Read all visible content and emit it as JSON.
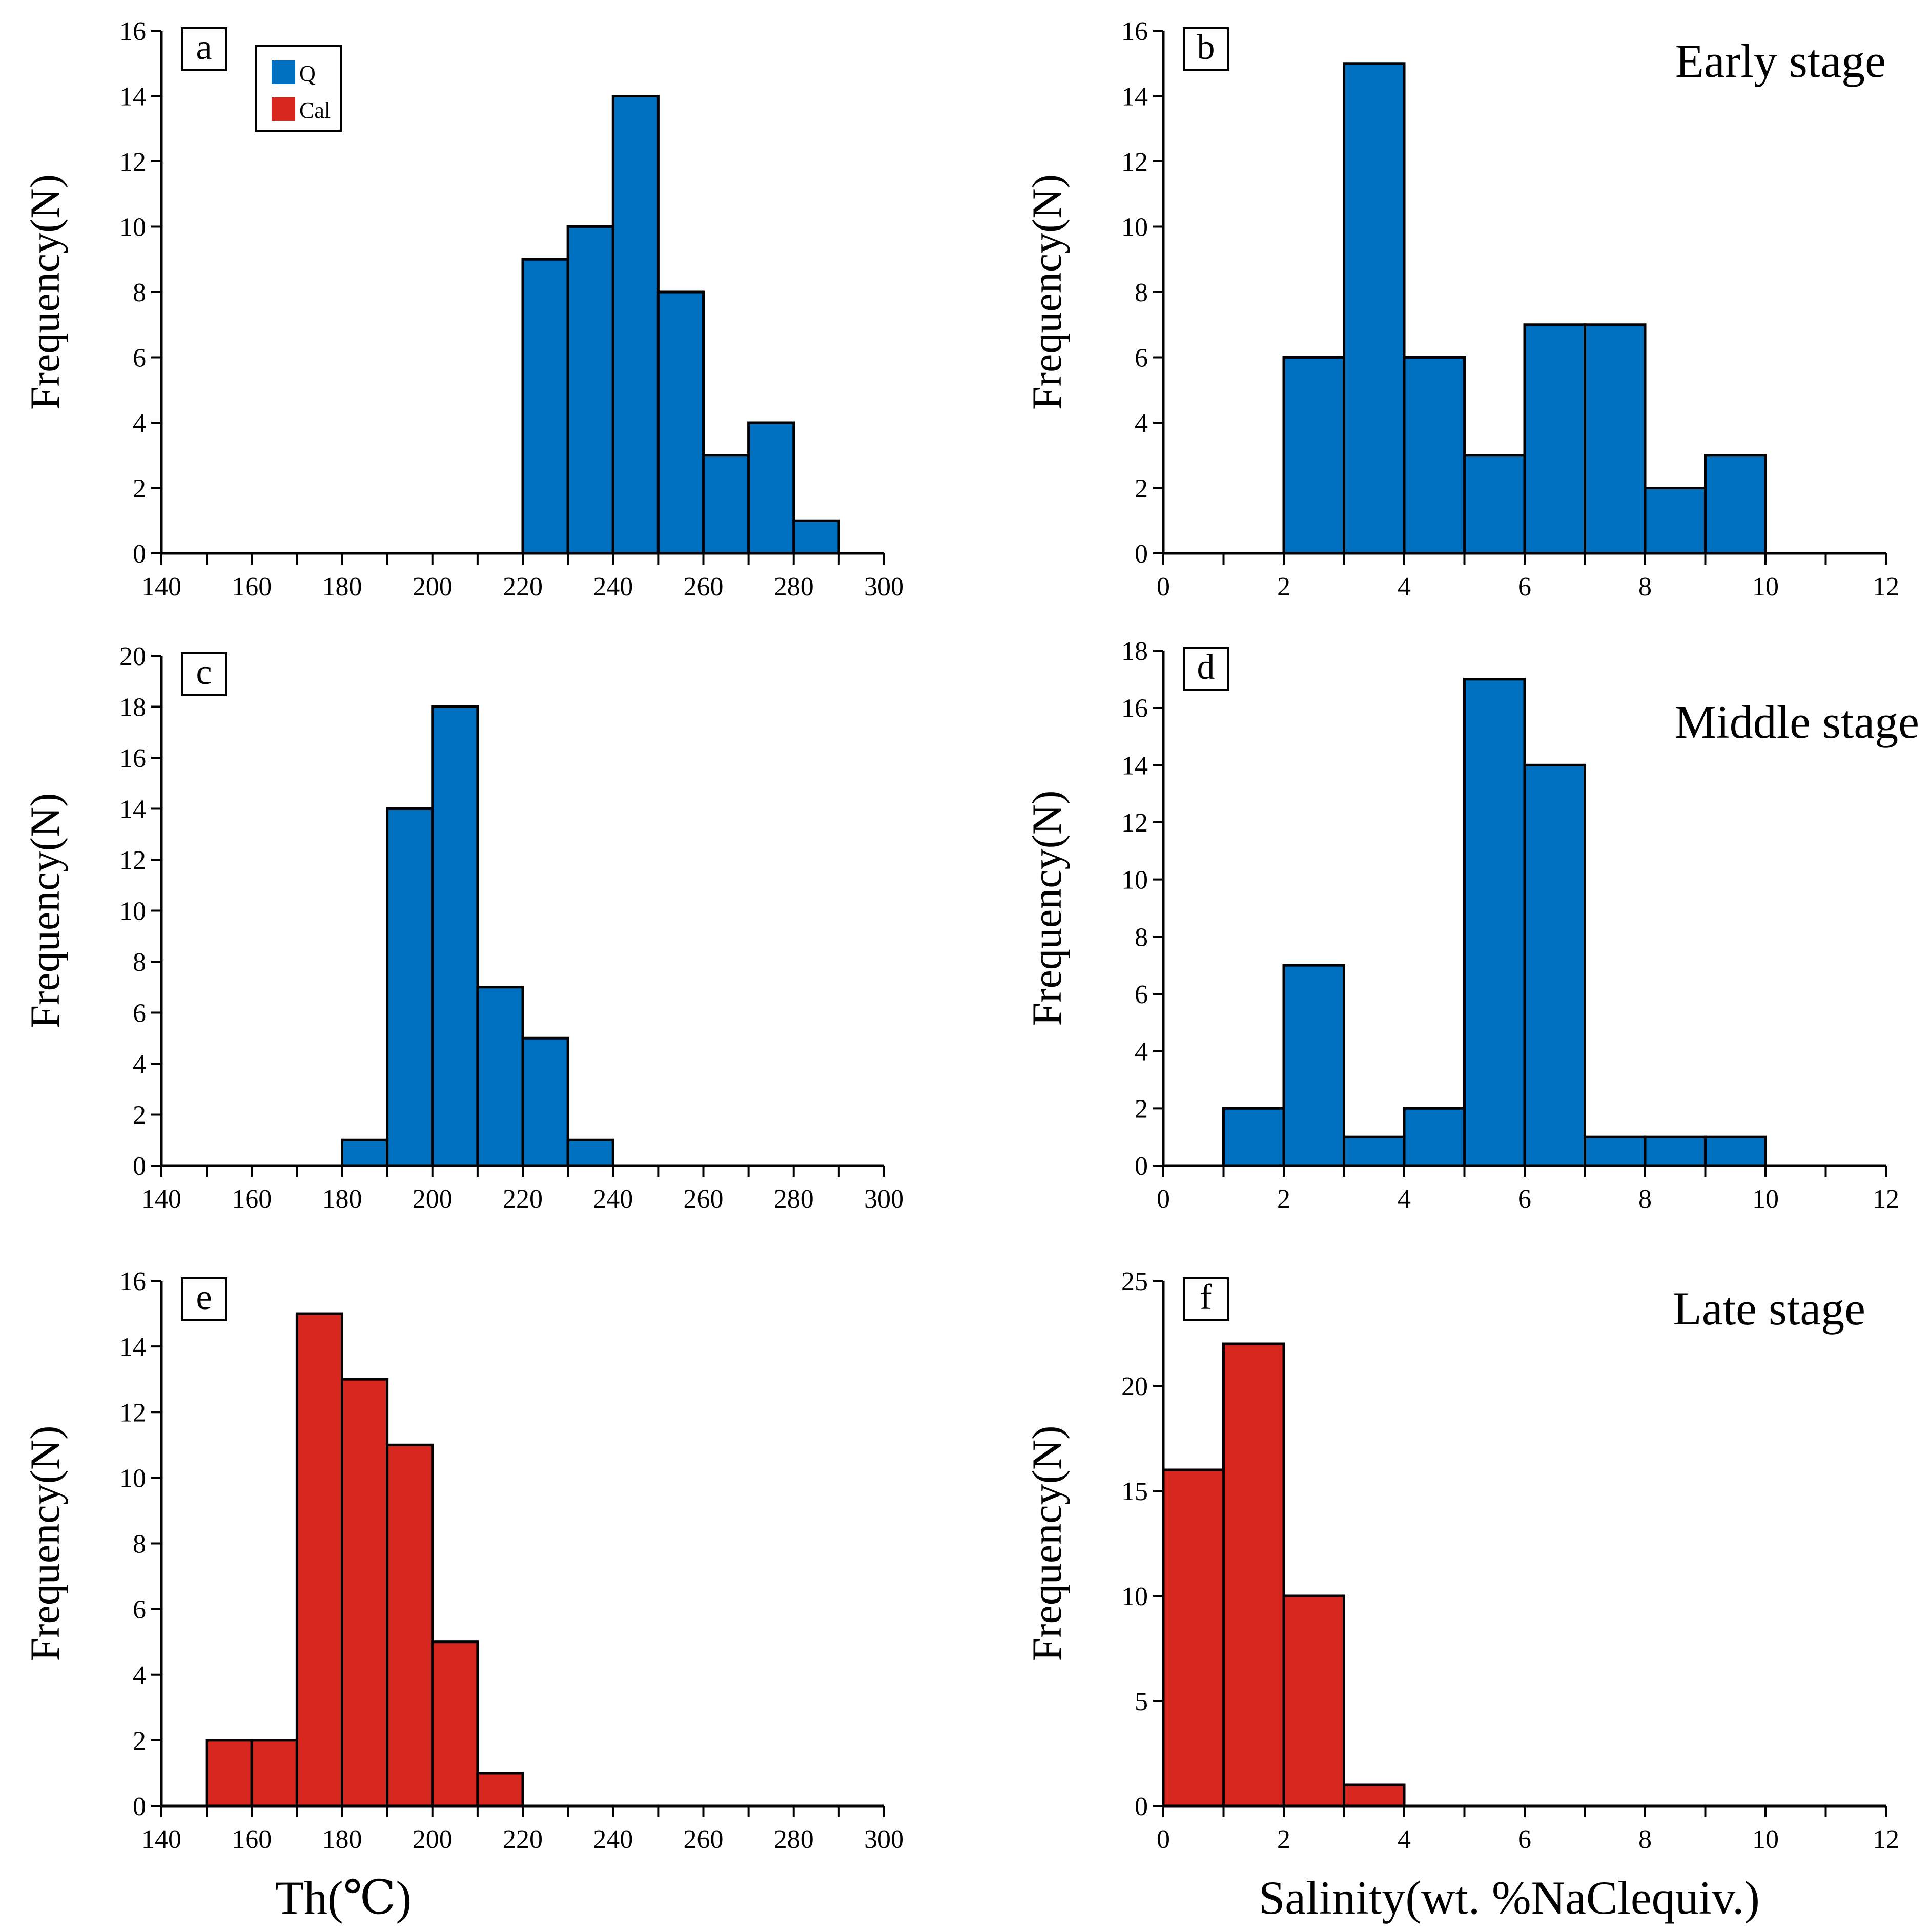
{
  "colors": {
    "Q": "#0070c0",
    "Cal": "#d7261e"
  },
  "legend": [
    {
      "key": "Q",
      "label": "Q",
      "color": "#0070c0"
    },
    {
      "key": "Cal",
      "label": "Cal",
      "color": "#d7261e"
    }
  ],
  "axis_labels": {
    "ylabel": "Frequency(N)",
    "xlabel_left": "Th(℃)",
    "xlabel_right": "Salinity(wt. %NaClequiv.)"
  },
  "chart_data": [
    {
      "id": "a",
      "type": "bar",
      "panel_label": "a",
      "stage_label": "",
      "mineral": "Q",
      "title": "",
      "xlabel": "",
      "ylabel": "Frequency(N)",
      "xlim": [
        140,
        300
      ],
      "ylim": [
        0,
        16
      ],
      "bin_width": 10,
      "xticks": [
        140,
        160,
        180,
        200,
        220,
        240,
        260,
        280,
        300
      ],
      "yticks": [
        0,
        2,
        4,
        6,
        8,
        10,
        12,
        14,
        16
      ],
      "bins": [
        220,
        230,
        240,
        250,
        260,
        270,
        280
      ],
      "values": [
        9,
        10,
        14,
        8,
        3,
        4,
        1
      ],
      "legend": true
    },
    {
      "id": "b",
      "type": "bar",
      "panel_label": "b",
      "stage_label": "Early stage",
      "mineral": "Q",
      "title": "",
      "xlabel": "",
      "ylabel": "Frequency(N)",
      "xlim": [
        0,
        12
      ],
      "ylim": [
        0,
        16
      ],
      "bin_width": 1,
      "xticks": [
        0,
        2,
        4,
        6,
        8,
        10,
        12
      ],
      "yticks": [
        0,
        2,
        4,
        6,
        8,
        10,
        12,
        14,
        16
      ],
      "bins": [
        2,
        3,
        4,
        5,
        6,
        7,
        8,
        9
      ],
      "values": [
        6,
        15,
        6,
        3,
        7,
        7,
        2,
        3
      ]
    },
    {
      "id": "c",
      "type": "bar",
      "panel_label": "c",
      "stage_label": "",
      "mineral": "Q",
      "title": "",
      "xlabel": "",
      "ylabel": "Frequency(N)",
      "xlim": [
        140,
        300
      ],
      "ylim": [
        0,
        20
      ],
      "bin_width": 10,
      "xticks": [
        140,
        160,
        180,
        200,
        220,
        240,
        260,
        280,
        300
      ],
      "yticks": [
        0,
        2,
        4,
        6,
        8,
        10,
        12,
        14,
        16,
        18,
        20
      ],
      "bins": [
        180,
        190,
        200,
        210,
        220,
        230
      ],
      "values": [
        1,
        14,
        18,
        7,
        5,
        1
      ]
    },
    {
      "id": "d",
      "type": "bar",
      "panel_label": "d",
      "stage_label": "Middle stage",
      "mineral": "Q",
      "title": "",
      "xlabel": "",
      "ylabel": "Frequency(N)",
      "xlim": [
        0,
        12
      ],
      "ylim": [
        0,
        18
      ],
      "bin_width": 1,
      "xticks": [
        0,
        2,
        4,
        6,
        8,
        10,
        12
      ],
      "yticks": [
        0,
        2,
        4,
        6,
        8,
        10,
        12,
        14,
        16,
        18
      ],
      "bins": [
        1,
        2,
        3,
        4,
        5,
        6,
        7,
        8,
        9
      ],
      "values": [
        2,
        7,
        1,
        2,
        17,
        14,
        1,
        1,
        1
      ]
    },
    {
      "id": "e",
      "type": "bar",
      "panel_label": "e",
      "stage_label": "",
      "mineral": "Cal",
      "title": "",
      "xlabel": "Th(℃)",
      "ylabel": "Frequency(N)",
      "xlim": [
        140,
        300
      ],
      "ylim": [
        0,
        16
      ],
      "bin_width": 10,
      "xticks": [
        140,
        160,
        180,
        200,
        220,
        240,
        260,
        280,
        300
      ],
      "yticks": [
        0,
        2,
        4,
        6,
        8,
        10,
        12,
        14,
        16
      ],
      "bins": [
        150,
        160,
        170,
        180,
        190,
        200,
        210
      ],
      "values": [
        2,
        2,
        15,
        13,
        11,
        5,
        1
      ]
    },
    {
      "id": "f",
      "type": "bar",
      "panel_label": "f",
      "stage_label": "Late stage",
      "mineral": "Cal",
      "title": "",
      "xlabel": "Salinity(wt. %NaClequiv.)",
      "ylabel": "Frequency(N)",
      "xlim": [
        0,
        12
      ],
      "ylim": [
        0,
        25
      ],
      "bin_width": 1,
      "xticks": [
        0,
        2,
        4,
        6,
        8,
        10,
        12
      ],
      "yticks": [
        0,
        5,
        10,
        15,
        20,
        25
      ],
      "bins": [
        0,
        1,
        2,
        3
      ],
      "values": [
        16,
        22,
        10,
        1
      ]
    }
  ]
}
